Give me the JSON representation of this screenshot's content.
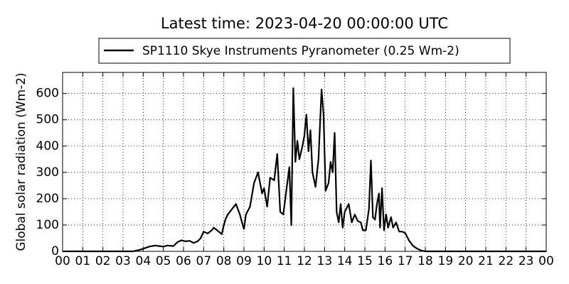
{
  "chart_data": {
    "type": "line",
    "title": "Latest time: 2023-04-20 00:00:00 UTC",
    "ylabel": "Global solar radiation (Wm-2)",
    "legend": "upper center",
    "grid": true,
    "xlim": [
      0,
      24
    ],
    "ylim": [
      0,
      680
    ],
    "xticks": [
      {
        "value": 0,
        "label": "00"
      },
      {
        "value": 1,
        "label": "01"
      },
      {
        "value": 2,
        "label": "02"
      },
      {
        "value": 3,
        "label": "03"
      },
      {
        "value": 4,
        "label": "04"
      },
      {
        "value": 5,
        "label": "05"
      },
      {
        "value": 6,
        "label": "06"
      },
      {
        "value": 7,
        "label": "07"
      },
      {
        "value": 8,
        "label": "08"
      },
      {
        "value": 9,
        "label": "09"
      },
      10,
      11,
      12,
      13,
      14,
      15,
      16,
      17,
      18,
      19,
      20,
      21,
      22,
      23,
      {
        "value": 24,
        "label": "00"
      }
    ],
    "yticks": [
      0,
      100,
      200,
      300,
      400,
      500,
      600
    ],
    "x": [
      0,
      3.5,
      3.8,
      4,
      4.3,
      4.6,
      4.8,
      5.0,
      5.2,
      5.5,
      5.7,
      5.9,
      6.1,
      6.3,
      6.5,
      6.7,
      6.85,
      7.0,
      7.2,
      7.4,
      7.5,
      7.7,
      7.9,
      8.0,
      8.1,
      8.2,
      8.4,
      8.6,
      8.8,
      8.9,
      9.0,
      9.1,
      9.3,
      9.5,
      9.7,
      9.9,
      10.0,
      10.15,
      10.3,
      10.5,
      10.65,
      10.8,
      10.95,
      11.1,
      11.25,
      11.35,
      11.45,
      11.55,
      11.65,
      11.75,
      11.9,
      12.0,
      12.1,
      12.2,
      12.3,
      12.4,
      12.55,
      12.7,
      12.85,
      12.95,
      13.05,
      13.2,
      13.3,
      13.4,
      13.5,
      13.6,
      13.7,
      13.8,
      13.9,
      14.0,
      14.2,
      14.35,
      14.5,
      14.65,
      14.8,
      14.9,
      15.05,
      15.2,
      15.3,
      15.4,
      15.5,
      15.6,
      15.7,
      15.75,
      15.85,
      15.95,
      16.05,
      16.15,
      16.3,
      16.4,
      16.55,
      16.7,
      16.85,
      17.0,
      17.2,
      17.4,
      17.6,
      17.8,
      18.0,
      24
    ],
    "series": [
      {
        "name": "SP1110 Skye Instruments Pyranometer (0.25 Wm-2)",
        "color": "#000000",
        "values": [
          0,
          0,
          5,
          10,
          18,
          22,
          20,
          18,
          22,
          20,
          35,
          42,
          38,
          40,
          32,
          38,
          50,
          75,
          68,
          80,
          90,
          78,
          65,
          100,
          125,
          140,
          160,
          180,
          140,
          110,
          85,
          140,
          170,
          260,
          300,
          220,
          240,
          170,
          280,
          270,
          370,
          150,
          140,
          230,
          320,
          100,
          620,
          340,
          420,
          350,
          400,
          440,
          520,
          380,
          460,
          300,
          245,
          350,
          615,
          520,
          230,
          260,
          340,
          300,
          450,
          150,
          110,
          180,
          90,
          150,
          180,
          110,
          140,
          115,
          110,
          80,
          80,
          160,
          345,
          130,
          120,
          180,
          220,
          90,
          240,
          80,
          140,
          90,
          130,
          90,
          110,
          75,
          75,
          70,
          40,
          20,
          10,
          3,
          0,
          0
        ]
      }
    ]
  }
}
